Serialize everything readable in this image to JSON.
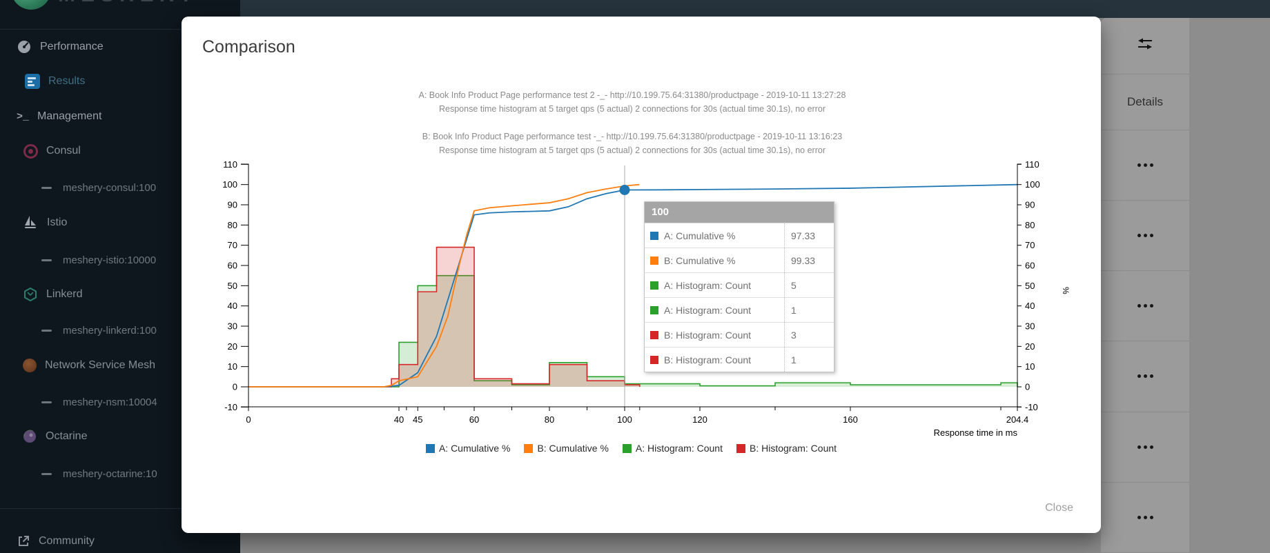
{
  "app": {
    "wordmark": "MESHERY"
  },
  "sidebar": {
    "items": [
      {
        "label": "Performance"
      },
      {
        "label": "Results"
      },
      {
        "label": "Management"
      },
      {
        "label": "Consul"
      },
      {
        "label": "meshery-consul:100"
      },
      {
        "label": "Istio"
      },
      {
        "label": "meshery-istio:10000"
      },
      {
        "label": "Linkerd"
      },
      {
        "label": "meshery-linkerd:100"
      },
      {
        "label": "Network Service Mesh"
      },
      {
        "label": "meshery-nsm:10004"
      },
      {
        "label": "Octarine"
      },
      {
        "label": "meshery-octarine:10"
      },
      {
        "label": "Community"
      }
    ]
  },
  "results_panel": {
    "details_header": "Details"
  },
  "modal": {
    "title": "Comparison",
    "close_label": "Close"
  },
  "chart_data": {
    "type": "mixed",
    "titles": {
      "a_line1": "A: Book Info Product Page performance test 2 -_- http://10.199.75.64:31380/productpage - 2019-10-11 13:27:28",
      "a_line2": "Response time histogram at 5 target qps (5 actual) 2 connections for 30s (actual time 30.1s), no error",
      "b_line1": "B: Book Info Product Page performance test -_- http://10.199.75.64:31380/productpage - 2019-10-11 13:16:23",
      "b_line2": "Response time histogram at 5 target qps (5 actual) 2 connections for 30s (actual time 30.1s), no error"
    },
    "xlabel": "Response time in ms",
    "ylabel_right": "%",
    "x_axis": {
      "min": 0,
      "max": 204.4,
      "ticks_labeled": [
        0,
        40,
        45,
        60,
        80,
        100,
        120,
        160,
        204.4
      ],
      "ticks_minor": [
        42,
        52,
        70,
        90,
        104,
        140,
        200
      ]
    },
    "y_axis": {
      "min": -10,
      "max": 110,
      "tick_step": 10
    },
    "series": [
      {
        "name": "A: Cumulative %",
        "type": "line",
        "color": "#1f77b4",
        "points": [
          [
            0,
            0
          ],
          [
            36,
            0
          ],
          [
            40,
            0.7
          ],
          [
            45,
            7
          ],
          [
            50,
            25
          ],
          [
            55,
            55
          ],
          [
            60,
            85
          ],
          [
            64,
            86
          ],
          [
            70,
            86.5
          ],
          [
            80,
            87
          ],
          [
            85,
            89
          ],
          [
            90,
            93
          ],
          [
            95,
            95.5
          ],
          [
            100,
            97.33
          ],
          [
            110,
            97.4
          ],
          [
            140,
            97.8
          ],
          [
            160,
            98.2
          ],
          [
            204.4,
            100
          ]
        ]
      },
      {
        "name": "B: Cumulative %",
        "type": "line",
        "color": "#ff7f0e",
        "points": [
          [
            0,
            0
          ],
          [
            36,
            0
          ],
          [
            38,
            0.7
          ],
          [
            40,
            3
          ],
          [
            45,
            5
          ],
          [
            50,
            20
          ],
          [
            53,
            35
          ],
          [
            56,
            60
          ],
          [
            58,
            75
          ],
          [
            60,
            87
          ],
          [
            64,
            88.5
          ],
          [
            70,
            89.5
          ],
          [
            80,
            91
          ],
          [
            85,
            93
          ],
          [
            90,
            96
          ],
          [
            95,
            97.8
          ],
          [
            100,
            99.33
          ],
          [
            103.9,
            100
          ]
        ]
      },
      {
        "name": "A: Histogram: Count",
        "type": "histogram",
        "color": "#2ca02c",
        "buckets": [
          [
            40,
            45,
            22
          ],
          [
            45,
            50,
            50
          ],
          [
            50,
            60,
            55
          ],
          [
            60,
            70,
            3
          ],
          [
            70,
            80,
            1
          ],
          [
            80,
            90,
            12
          ],
          [
            90,
            100,
            5
          ],
          [
            100,
            120,
            1.5
          ],
          [
            120,
            140,
            0.5
          ],
          [
            140,
            160,
            2
          ],
          [
            160,
            200,
            1
          ],
          [
            200,
            204.4,
            2
          ]
        ]
      },
      {
        "name": "B: Histogram: Count",
        "type": "histogram",
        "color": "#d62728",
        "buckets": [
          [
            38,
            40,
            4
          ],
          [
            40,
            45,
            11
          ],
          [
            45,
            50,
            47
          ],
          [
            50,
            60,
            69
          ],
          [
            60,
            70,
            4
          ],
          [
            70,
            80,
            1.5
          ],
          [
            80,
            90,
            11
          ],
          [
            90,
            100,
            3
          ],
          [
            100,
            104,
            1
          ]
        ]
      }
    ],
    "legend": [
      "A: Cumulative %",
      "B: Cumulative %",
      "A: Histogram: Count",
      "B: Histogram: Count"
    ],
    "crosshair_x": 100,
    "marker": {
      "series": "A: Cumulative %",
      "x": 100,
      "y": 97.33
    },
    "tooltip": {
      "header": "100",
      "rows": [
        {
          "color": "#1f77b4",
          "label": "A: Cumulative %",
          "value": "97.33"
        },
        {
          "color": "#ff7f0e",
          "label": "B: Cumulative %",
          "value": "99.33"
        },
        {
          "color": "#2ca02c",
          "label": "A: Histogram: Count",
          "value": "5"
        },
        {
          "color": "#2ca02c",
          "label": "A: Histogram: Count",
          "value": "1"
        },
        {
          "color": "#d62728",
          "label": "B: Histogram: Count",
          "value": "3"
        },
        {
          "color": "#d62728",
          "label": "B: Histogram: Count",
          "value": "1"
        }
      ]
    }
  }
}
